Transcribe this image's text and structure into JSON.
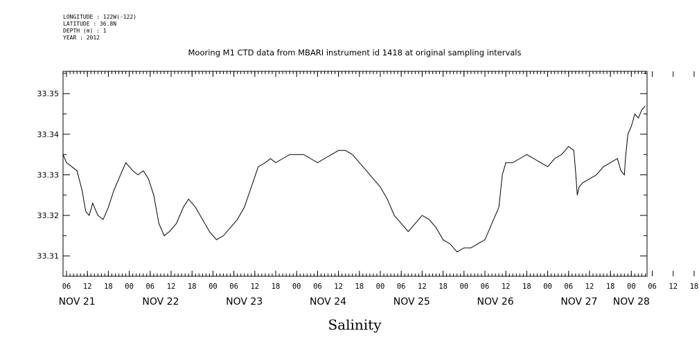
{
  "metadata": {
    "longitude": "LONGITUDE : 122W(-122)",
    "latitude": "LATITUDE : 36.8N",
    "depth": "DEPTH (m) : 1",
    "year": "YEAR : 2012"
  },
  "chart_data": {
    "type": "line",
    "title": "Mooring M1 CTD data from MBARI instrument id 1418 at original sampling intervals",
    "xlabel": "Salinity",
    "ylabel": "",
    "ylim": [
      33.305,
      33.3555
    ],
    "y_ticks": [
      "33.31",
      "33.32",
      "33.33",
      "33.34",
      "33.35"
    ],
    "x_unit": "hours since 2012-11-21 00:00",
    "xlim": [
      5.0,
      172.5
    ],
    "hour_ticks": [
      "06",
      "12",
      "18",
      "00",
      "06",
      "12",
      "18",
      "00",
      "06",
      "12",
      "18",
      "00",
      "06",
      "12",
      "18",
      "00",
      "06",
      "12",
      "18",
      "00",
      "06",
      "12",
      "18",
      "00",
      "06",
      "12",
      "18",
      "00",
      "06",
      "12",
      "18",
      "00"
    ],
    "day_labels": [
      {
        "label": "NOV 21",
        "hour": 9
      },
      {
        "label": "NOV 22",
        "hour": 33
      },
      {
        "label": "NOV 23",
        "hour": 57
      },
      {
        "label": "NOV 24",
        "hour": 81
      },
      {
        "label": "NOV 25",
        "hour": 105
      },
      {
        "label": "NOV 26",
        "hour": 129
      },
      {
        "label": "NOV 27",
        "hour": 153
      },
      {
        "label": "NOV 28",
        "hour": 168
      }
    ],
    "grid": false,
    "line_color": "#000000",
    "series": [
      {
        "x": [
          5.0,
          6.0,
          7.5,
          9.0,
          10.5,
          11.5,
          12.5,
          13.5,
          15.0,
          16.5,
          18.0,
          19.5,
          21.0,
          23.0,
          25.0,
          26.5,
          28.0,
          29.5,
          31.0,
          32.5,
          34.0,
          35.5,
          37.5,
          39.5,
          41.0,
          43.0,
          45.0,
          47.0,
          49.0,
          51.0,
          53.0,
          55.0,
          57.0,
          59.0,
          61.0,
          63.0,
          64.5,
          66.0,
          68.0,
          70.0,
          72.0,
          74.0,
          76.0,
          78.0,
          80.0,
          82.0,
          84.0,
          86.0,
          88.0,
          90.0,
          92.0,
          94.0,
          96.0,
          98.0,
          100.0,
          102.0,
          104.0,
          106.0,
          108.0,
          110.0,
          112.0,
          114.0,
          116.0,
          118.0,
          120.0,
          122.0,
          124.0,
          126.0,
          128.0,
          130.0,
          131.0,
          132.0,
          134.0,
          136.0,
          138.0,
          140.0,
          142.0,
          144.0,
          146.0,
          148.0,
          150.0,
          151.5,
          152.0,
          152.5,
          153.0,
          154.0,
          156.0,
          158.0,
          160.0,
          162.0,
          164.0,
          165.0,
          166.0,
          166.3,
          167.0,
          168.0,
          169.0,
          170.0,
          171.0,
          172.0
        ],
        "values": [
          33.335,
          33.333,
          33.332,
          33.331,
          33.326,
          33.321,
          33.32,
          33.323,
          33.32,
          33.319,
          33.322,
          33.326,
          33.329,
          33.333,
          33.331,
          33.33,
          33.331,
          33.329,
          33.325,
          33.318,
          33.315,
          33.316,
          33.318,
          33.322,
          33.324,
          33.322,
          33.319,
          33.316,
          33.314,
          33.315,
          33.317,
          33.319,
          33.322,
          33.327,
          33.332,
          33.333,
          33.334,
          33.333,
          33.334,
          33.335,
          33.335,
          33.335,
          33.334,
          33.333,
          33.334,
          33.335,
          33.336,
          33.336,
          33.335,
          33.333,
          33.331,
          33.329,
          33.327,
          33.324,
          33.32,
          33.318,
          33.316,
          33.318,
          33.32,
          33.319,
          33.317,
          33.314,
          33.313,
          33.311,
          33.312,
          33.312,
          33.313,
          33.314,
          33.318,
          33.322,
          33.33,
          33.333,
          33.333,
          33.334,
          33.335,
          33.334,
          33.333,
          33.332,
          33.334,
          33.335,
          33.337,
          33.336,
          33.331,
          33.325,
          33.327,
          33.328,
          33.329,
          33.33,
          33.332,
          33.333,
          33.334,
          33.331,
          33.33,
          33.334,
          33.34,
          33.342,
          33.345,
          33.344,
          33.346,
          33.347
        ]
      }
    ]
  }
}
